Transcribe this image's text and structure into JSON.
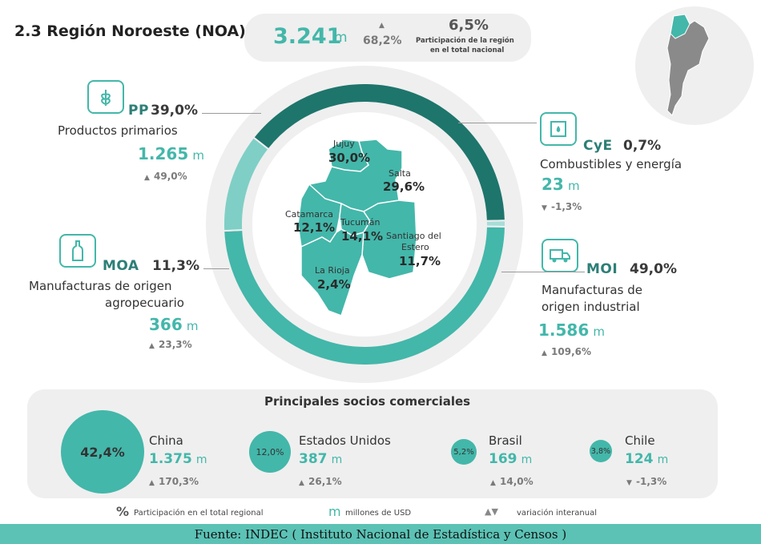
{
  "header": {
    "title": "2.3 Región Noroeste (NOA)",
    "total_value": "3.241",
    "total_unit": "m",
    "total_var": "68,2%",
    "share": "6,5%",
    "share_caption_line1": "Participación de la región",
    "share_caption_line2": "en el total nacional"
  },
  "categories": {
    "pp": {
      "code": "PP",
      "pct": "39,0%",
      "name": "Productos primarios",
      "value": "1.265",
      "unit": "m",
      "var": "49,0%",
      "dir": "up"
    },
    "cye": {
      "code": "CyE",
      "pct": "0,7%",
      "name": "Combustibles y energía",
      "value": "23",
      "unit": "m",
      "var": "-1,3%",
      "dir": "down"
    },
    "moa": {
      "code": "MOA",
      "pct": "11,3%",
      "name_line1": "Manufacturas de origen",
      "name_line2": "agropecuario",
      "value": "366",
      "unit": "m",
      "var": "23,3%",
      "dir": "up"
    },
    "moi": {
      "code": "MOI",
      "pct": "49,0%",
      "name_line1": "Manufacturas de",
      "name_line2": "origen industrial",
      "value": "1.586",
      "unit": "m",
      "var": "109,6%",
      "dir": "up"
    }
  },
  "chart_data": {
    "type": "pie",
    "categories": [
      "PP",
      "CyE",
      "MOI",
      "MOA"
    ],
    "values": [
      39.0,
      0.7,
      49.0,
      11.3
    ],
    "colors": [
      "#1e756c",
      "#a8ddd8",
      "#43b7aa",
      "#7fcfc6"
    ]
  },
  "map": {
    "provinces": [
      {
        "name": "Jujuy",
        "pct": "30,0%"
      },
      {
        "name": "Salta",
        "pct": "29,6%"
      },
      {
        "name": "Catamarca",
        "pct": "12,1%"
      },
      {
        "name": "Tucumán",
        "pct": "14,1%"
      },
      {
        "name": "Santiago del",
        "name2": "Estero",
        "pct": "11,7%"
      },
      {
        "name": "La Rioja",
        "pct": "2,4%"
      }
    ]
  },
  "partners": {
    "title": "Principales socios comerciales",
    "items": [
      {
        "share": "42,4%",
        "name": "China",
        "value": "1.375",
        "unit": "m",
        "var": "170,3%",
        "dir": "up"
      },
      {
        "share": "12,0%",
        "name": "Estados Unidos",
        "value": "387",
        "unit": "m",
        "var": "26,1%",
        "dir": "up"
      },
      {
        "share": "5,2%",
        "name": "Brasil",
        "value": "169",
        "unit": "m",
        "var": "14,0%",
        "dir": "up"
      },
      {
        "share": "3,8%",
        "name": "Chile",
        "value": "124",
        "unit": "m",
        "var": "-1,3%",
        "dir": "down"
      }
    ]
  },
  "legend": {
    "pct_symbol": "%",
    "pct_text": "Participación en el total regional",
    "m_symbol": "m",
    "m_text": "millones de USD",
    "var_symbol": "▲▼",
    "var_text": "variación interanual"
  },
  "footer": {
    "source": "Fuente: INDEC ( Instituto Nacional de Estadística y Censos )"
  }
}
